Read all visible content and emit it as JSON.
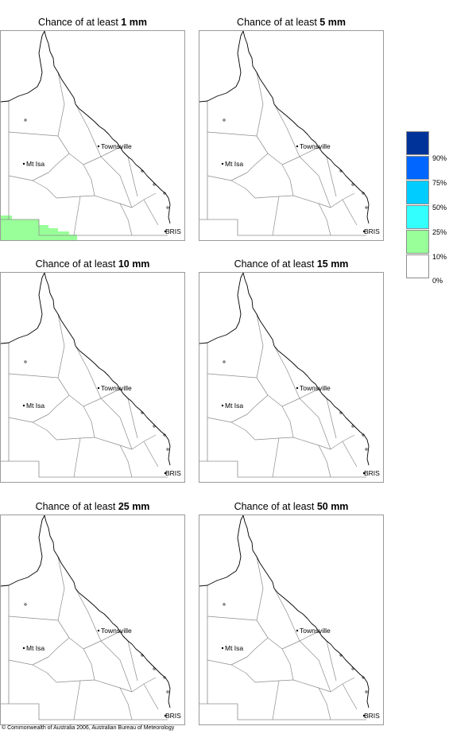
{
  "panels": [
    {
      "prefix": "Chance of at least ",
      "amount": "1 mm",
      "shaded": true
    },
    {
      "prefix": "Chance of at least ",
      "amount": "5 mm",
      "shaded": false
    },
    {
      "prefix": "Chance of at least ",
      "amount": "10 mm",
      "shaded": false
    },
    {
      "prefix": "Chance of at least ",
      "amount": "15 mm",
      "shaded": false
    },
    {
      "prefix": "Chance of at least ",
      "amount": "25 mm",
      "shaded": false
    },
    {
      "prefix": "Chance of at least ",
      "amount": "50 mm",
      "shaded": false
    }
  ],
  "cities": {
    "townsville": "Townsville",
    "mt_isa": "Mt Isa",
    "bris": "BRIS"
  },
  "legend": {
    "classes": [
      {
        "color": "#003399"
      },
      {
        "color": "#0066ff"
      },
      {
        "color": "#00ccff"
      },
      {
        "color": "#33ffff"
      },
      {
        "color": "#99ff99"
      },
      {
        "color": "#ffffff"
      }
    ],
    "ticks": [
      "90%",
      "75%",
      "50%",
      "25%",
      "10%",
      "0%"
    ]
  },
  "colors": {
    "shade_low": "#99ff99",
    "outline": "#000000",
    "region": "#8c8c8c"
  },
  "copyright": "© Commonwealth of Australia 2006, Australian Bureau of Meteorology"
}
